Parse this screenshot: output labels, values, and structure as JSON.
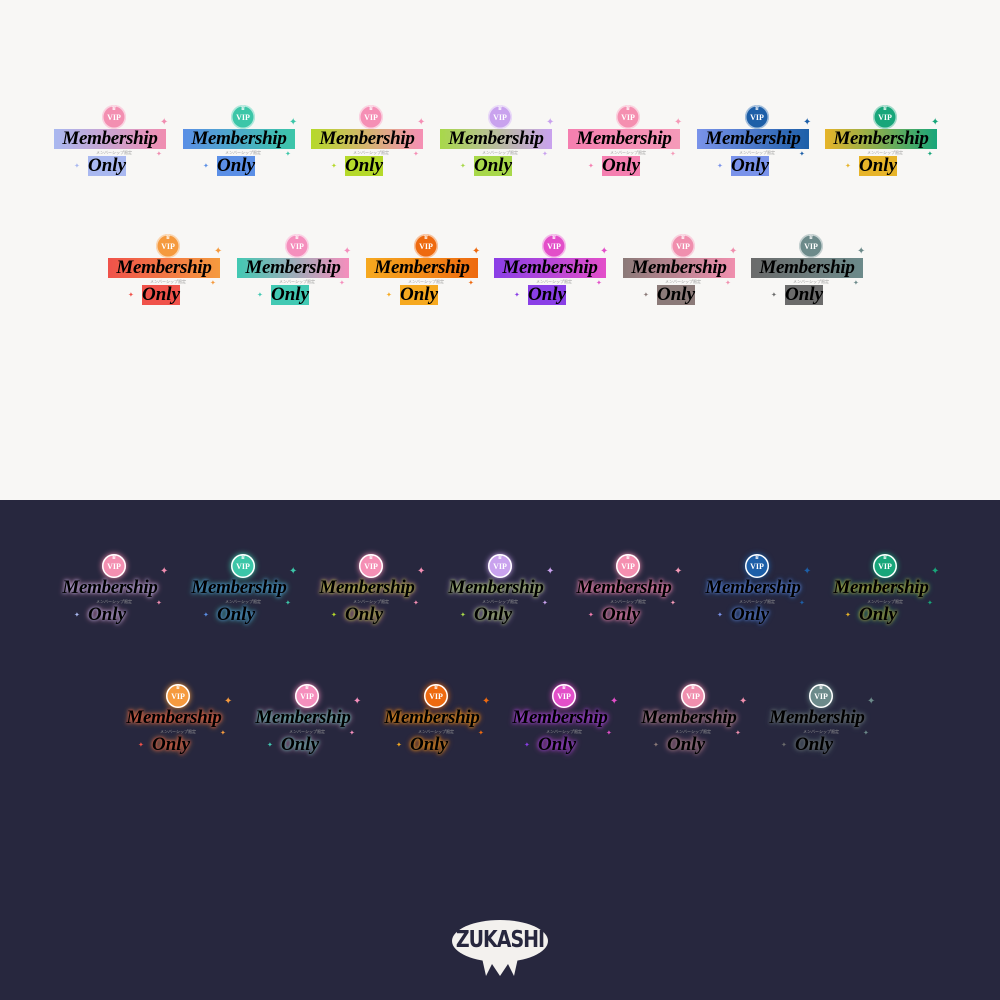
{
  "badge_text": {
    "vip": "VIP",
    "title": "Membership",
    "subtitle_jp": "メンバーシップ限定",
    "only": "Only"
  },
  "logo": {
    "text": "ZUKASHI"
  },
  "background_colors": {
    "light": "#f8f7f5",
    "dark": "#27273e"
  },
  "variants_row1": [
    {
      "from": "#a9b8f0",
      "to": "#f08db0",
      "circle": "#f38fb1"
    },
    {
      "from": "#5b8fe6",
      "to": "#3cc6a8",
      "circle": "#3cc6a8"
    },
    {
      "from": "#b5d92a",
      "to": "#f58fb5",
      "circle": "#f58fb5"
    },
    {
      "from": "#a8d84a",
      "to": "#c9a2ee",
      "circle": "#c9a2ee"
    },
    {
      "from": "#f57fb0",
      "to": "#f59ab8",
      "circle": "#f58fb0"
    },
    {
      "from": "#7a93ea",
      "to": "#1d5fa8",
      "circle": "#1d5fa8"
    },
    {
      "from": "#e7b429",
      "to": "#18a67a",
      "circle": "#18a67a"
    }
  ],
  "variants_row2": [
    {
      "from": "#f0524a",
      "to": "#f59a3e",
      "circle": "#f59a3e"
    },
    {
      "from": "#42c9b3",
      "to": "#f58fbd",
      "circle": "#f58fbd"
    },
    {
      "from": "#f6a91f",
      "to": "#ee6a10",
      "circle": "#ee6a10"
    },
    {
      "from": "#8a3fe6",
      "to": "#e34fc9",
      "circle": "#e34fc9"
    },
    {
      "from": "#8b7a78",
      "to": "#f08fae",
      "circle": "#f08fae"
    },
    {
      "from": "#6b6b6b",
      "to": "#6c8a8a",
      "circle": "#6c8a8a"
    }
  ]
}
